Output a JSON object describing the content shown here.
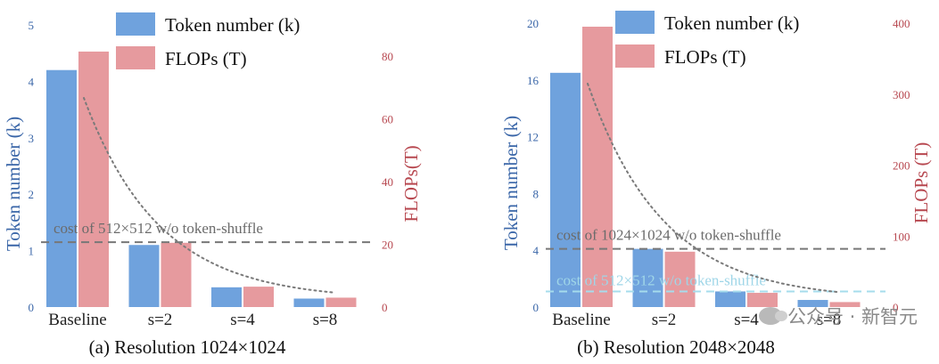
{
  "colors": {
    "token_bar": "#6fa2dd",
    "flops_bar": "#e69a9e",
    "left_axis_text": "#3a66a8",
    "right_axis_text": "#b7474f",
    "ref_line_gray": "#777777",
    "ref_line_cyan": "#a6dcec",
    "curve": "#7a7a7a"
  },
  "watermark": {
    "text": "公众号 · 新智元",
    "icon": "wechat-icon"
  },
  "chart_data": [
    {
      "type": "bar",
      "caption": "(a) Resolution 1024×1024",
      "categories": [
        "Baseline",
        "s=2",
        "s=4",
        "s=8"
      ],
      "series": [
        {
          "name": "Token number (k)",
          "axis": "left",
          "values": [
            4.2,
            1.1,
            0.35,
            0.15
          ]
        },
        {
          "name": "FLOPs (T)",
          "axis": "right",
          "values": [
            81.5,
            20.5,
            6.5,
            3.0
          ]
        }
      ],
      "ylabel_left": "Token number (k)",
      "ylabel_right": "FLOPs(T)",
      "ylim_left": [
        0,
        5
      ],
      "yticks_left": [
        "0",
        "1",
        "2",
        "3",
        "4",
        "5"
      ],
      "ylim_right": [
        0,
        90
      ],
      "yticks_right": [
        "0",
        "20",
        "40",
        "60",
        "80"
      ],
      "legend": [
        "Token number (k)",
        "FLOPs (T)"
      ],
      "reference_lines": [
        {
          "label": "cost of 512×512 w/o token-shuffle",
          "value_left": 1.15,
          "color": "gray"
        }
      ],
      "trend_curve": "dotted decay from Baseline to s=8"
    },
    {
      "type": "bar",
      "caption": "(b) Resolution 2048×2048",
      "categories": [
        "Baseline",
        "s=2",
        "s=4",
        "s=8"
      ],
      "series": [
        {
          "name": "Token number (k)",
          "axis": "left",
          "values": [
            16.5,
            4.1,
            1.1,
            0.5
          ]
        },
        {
          "name": "FLOPs (T)",
          "axis": "right",
          "values": [
            395,
            78,
            20,
            7
          ]
        }
      ],
      "ylabel_left": "Token number (k)",
      "ylabel_right": "FLOPs (T)",
      "ylim_left": [
        0,
        20
      ],
      "yticks_left": [
        "0",
        "4",
        "8",
        "12",
        "16",
        "20"
      ],
      "ylim_right": [
        0,
        400
      ],
      "yticks_right": [
        "0",
        "100",
        "200",
        "300",
        "400"
      ],
      "legend": [
        "Token number (k)",
        "FLOPs (T)"
      ],
      "reference_lines": [
        {
          "label": "cost of 1024×1024 w/o token-shuffle",
          "value_left": 4.1,
          "color": "gray"
        },
        {
          "label": "cost of 512×512 w/o token-shuffle",
          "value_left": 1.1,
          "color": "cyan"
        }
      ],
      "trend_curve": "dotted decay from Baseline to s=8"
    }
  ]
}
